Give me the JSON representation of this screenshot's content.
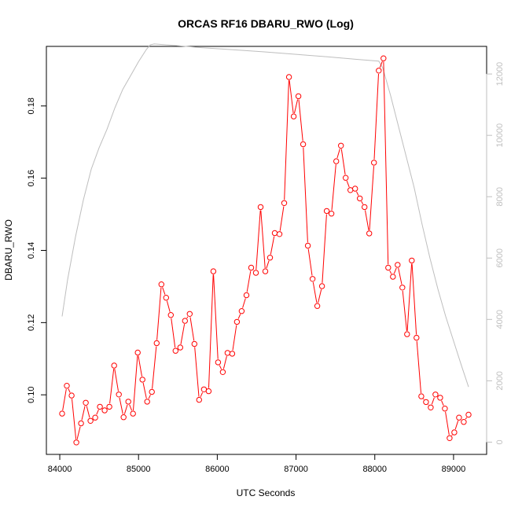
{
  "chart_data": {
    "type": "line",
    "title": "ORCAS RF16 DBARU_RWO (Log)",
    "xlabel": "UTC Seconds",
    "ylabel": "DBARU_RWO",
    "xlim": [
      83830,
      89420
    ],
    "ylim": [
      0.0835,
      0.1965
    ],
    "y2lim": [
      -400,
      12900
    ],
    "x_ticks": [
      84000,
      85000,
      86000,
      87000,
      88000,
      89000
    ],
    "y_ticks": [
      0.1,
      0.12,
      0.14,
      0.16,
      0.18
    ],
    "y2_ticks": [
      0,
      2000,
      4000,
      6000,
      8000,
      10000,
      12000
    ],
    "colors": {
      "primary": "#ff0000",
      "secondary": "#bebebe"
    },
    "series": [
      {
        "marker": "circle-open",
        "color": "#ff0000",
        "x": [
          84030,
          84090,
          84150,
          84210,
          84270,
          84330,
          84390,
          84450,
          84510,
          84570,
          84630,
          84690,
          84750,
          84810,
          84870,
          84930,
          84990,
          85050,
          85110,
          85170,
          85230,
          85290,
          85350,
          85410,
          85470,
          85530,
          85590,
          85650,
          85710,
          85770,
          85830,
          85890,
          85950,
          86010,
          86070,
          86130,
          86190,
          86250,
          86310,
          86370,
          86430,
          86490,
          86550,
          86610,
          86670,
          86730,
          86790,
          86850,
          86910,
          86970,
          87030,
          87090,
          87150,
          87210,
          87270,
          87330,
          87390,
          87450,
          87510,
          87570,
          87630,
          87690,
          87750,
          87810,
          87870,
          87930,
          87990,
          88050,
          88110,
          88170,
          88230,
          88290,
          88350,
          88410,
          88470,
          88530,
          88590,
          88650,
          88710,
          88770,
          88830,
          88890,
          88950,
          89010,
          89070,
          89130,
          89190
        ],
        "values": [
          0.0948,
          0.1025,
          0.0998,
          0.0868,
          0.0921,
          0.0978,
          0.0928,
          0.0937,
          0.0967,
          0.0957,
          0.0967,
          0.1081,
          0.1001,
          0.0938,
          0.0981,
          0.0948,
          0.1117,
          0.1042,
          0.0981,
          0.1008,
          0.1143,
          0.1306,
          0.1269,
          0.1221,
          0.1122,
          0.1131,
          0.1205,
          0.1224,
          0.1141,
          0.0986,
          0.1015,
          0.101,
          0.1342,
          0.109,
          0.1063,
          0.1116,
          0.1114,
          0.1202,
          0.1232,
          0.1276,
          0.1352,
          0.1338,
          0.152,
          0.1342,
          0.138,
          0.1448,
          0.1445,
          0.1531,
          0.188,
          0.1771,
          0.1827,
          0.1694,
          0.1413,
          0.1321,
          0.1246,
          0.1301,
          0.1509,
          0.1502,
          0.1647,
          0.169,
          0.1601,
          0.1567,
          0.1571,
          0.1544,
          0.152,
          0.1447,
          0.1643,
          0.1898,
          0.1932,
          0.1352,
          0.1327,
          0.136,
          0.1297,
          0.1168,
          0.1372,
          0.1158,
          0.0996,
          0.098,
          0.0965,
          0.1001,
          0.0992,
          0.0962,
          0.088,
          0.0896,
          0.0937,
          0.0925,
          0.0945
        ]
      },
      {
        "axis": "right",
        "color": "#bebebe",
        "x": [
          84030,
          84100,
          84200,
          84300,
          84400,
          84500,
          84600,
          84700,
          84800,
          84900,
          85000,
          85100,
          85150,
          85200,
          85400,
          85800,
          86200,
          86600,
          87000,
          87400,
          87800,
          88050,
          88100,
          88200,
          88300,
          88400,
          88500,
          88600,
          88700,
          88800,
          88900,
          89000,
          89100,
          89190
        ],
        "values": [
          4100,
          5300,
          6700,
          7900,
          8900,
          9600,
          10200,
          10900,
          11500,
          11950,
          12400,
          12800,
          12950,
          12980,
          12940,
          12860,
          12790,
          12720,
          12640,
          12560,
          12470,
          12420,
          12200,
          11300,
          10300,
          9300,
          8300,
          7100,
          6000,
          5000,
          4100,
          3300,
          2500,
          1800
        ]
      }
    ]
  }
}
